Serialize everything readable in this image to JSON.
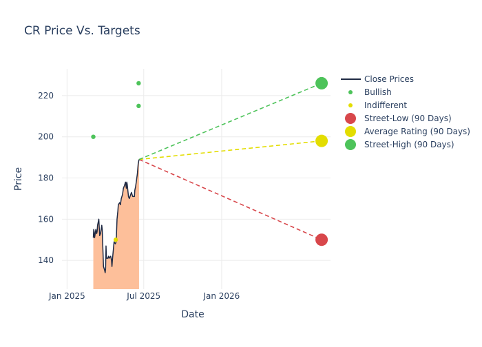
{
  "chart_data": {
    "type": "line",
    "title": "CR Price Vs. Targets",
    "xlabel": "Date",
    "ylabel": "Price",
    "x_range": [
      "2024-12-20",
      "2026-09-15"
    ],
    "ylim": [
      126,
      233
    ],
    "grid": true,
    "legend_position": "right",
    "x_ticks": [
      {
        "date": "2025-01-01",
        "label": "Jan 2025"
      },
      {
        "date": "2025-07-01",
        "label": "Jul 2025"
      },
      {
        "date": "2026-01-01",
        "label": "Jan 2026"
      }
    ],
    "y_ticks": [
      140,
      160,
      180,
      200,
      220
    ],
    "colors": {
      "close_line": "#1f2a44",
      "area_fill": "#fdbf9a",
      "bullish": "#4dc35a",
      "indifferent": "#e3dd00",
      "street_low": "#d8474b",
      "average": "#e3dd00",
      "street_high": "#4dc35a"
    },
    "series": [
      {
        "name": "Close Prices",
        "kind": "line",
        "points": [
          [
            "2025-03-04",
            151
          ],
          [
            "2025-03-05",
            155
          ],
          [
            "2025-03-06",
            154
          ],
          [
            "2025-03-07",
            151
          ],
          [
            "2025-03-10",
            155
          ],
          [
            "2025-03-11",
            154
          ],
          [
            "2025-03-12",
            153
          ],
          [
            "2025-03-13",
            154
          ],
          [
            "2025-03-14",
            157
          ],
          [
            "2025-03-17",
            160
          ],
          [
            "2025-03-18",
            156
          ],
          [
            "2025-03-19",
            152
          ],
          [
            "2025-03-21",
            153
          ],
          [
            "2025-03-24",
            157
          ],
          [
            "2025-03-25",
            155
          ],
          [
            "2025-03-26",
            149
          ],
          [
            "2025-03-27",
            143
          ],
          [
            "2025-03-28",
            137
          ],
          [
            "2025-03-31",
            135
          ],
          [
            "2025-04-01",
            134
          ],
          [
            "2025-04-02",
            136
          ],
          [
            "2025-04-03",
            147
          ],
          [
            "2025-04-04",
            141
          ],
          [
            "2025-04-07",
            141
          ],
          [
            "2025-04-09",
            142
          ],
          [
            "2025-04-10",
            141
          ],
          [
            "2025-04-14",
            142
          ],
          [
            "2025-04-16",
            140
          ],
          [
            "2025-04-17",
            137
          ],
          [
            "2025-04-18",
            140
          ],
          [
            "2025-04-22",
            149
          ],
          [
            "2025-04-25",
            148
          ],
          [
            "2025-04-27",
            149
          ],
          [
            "2025-04-29",
            160
          ],
          [
            "2025-05-01",
            164
          ],
          [
            "2025-05-02",
            167
          ],
          [
            "2025-05-05",
            168
          ],
          [
            "2025-05-07",
            167
          ],
          [
            "2025-05-09",
            170
          ],
          [
            "2025-05-12",
            172
          ],
          [
            "2025-05-14",
            175
          ],
          [
            "2025-05-16",
            176
          ],
          [
            "2025-05-19",
            178
          ],
          [
            "2025-05-21",
            175
          ],
          [
            "2025-05-22",
            178
          ],
          [
            "2025-05-23",
            177
          ],
          [
            "2025-05-26",
            171
          ],
          [
            "2025-05-28",
            170
          ],
          [
            "2025-06-02",
            173
          ],
          [
            "2025-06-05",
            171
          ],
          [
            "2025-06-09",
            171
          ],
          [
            "2025-06-10",
            174
          ],
          [
            "2025-06-12",
            176
          ],
          [
            "2025-06-16",
            182
          ],
          [
            "2025-06-18",
            187
          ],
          [
            "2025-06-20",
            189
          ]
        ]
      },
      {
        "name": "Bullish",
        "kind": "markers",
        "points": [
          [
            "2025-03-04",
            200
          ],
          [
            "2025-06-19",
            226
          ],
          [
            "2025-06-19",
            215
          ]
        ]
      },
      {
        "name": "Indifferent",
        "kind": "markers",
        "points": [
          [
            "2025-04-26",
            150
          ]
        ]
      },
      {
        "name": "Street-Low (90 Days)",
        "kind": "target",
        "from": [
          "2025-06-20",
          189
        ],
        "to": [
          "2026-08-25",
          150
        ]
      },
      {
        "name": "Average Rating (90 Days)",
        "kind": "target",
        "from": [
          "2025-06-20",
          189
        ],
        "to": [
          "2026-08-25",
          198
        ]
      },
      {
        "name": "Street-High (90 Days)",
        "kind": "target",
        "from": [
          "2025-06-20",
          189
        ],
        "to": [
          "2026-08-25",
          226
        ]
      }
    ]
  }
}
